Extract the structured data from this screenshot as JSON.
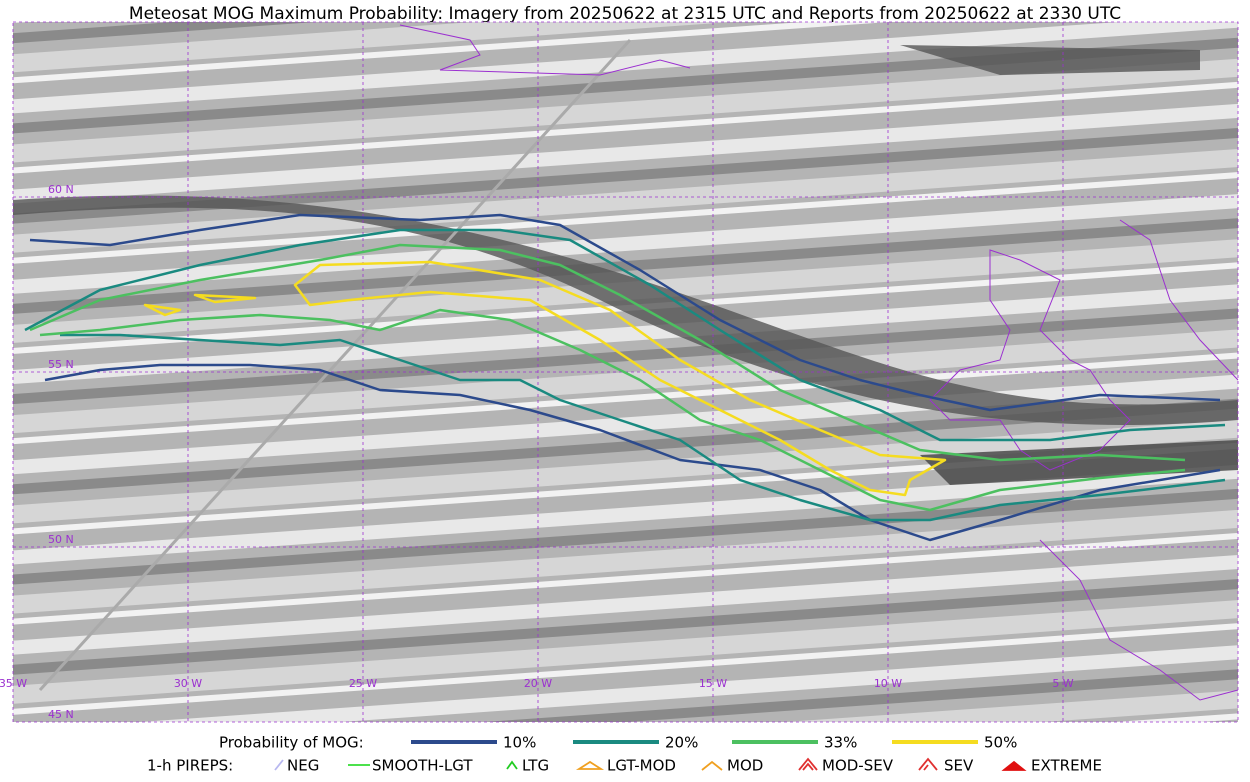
{
  "title": "Meteosat MOG Maximum Probability: Imagery from 20250622 at 2315 UTC and Reports from 20250622 at 2330 UTC",
  "map": {
    "lat_labels": [
      "60 N",
      "55 N",
      "50 N",
      "45 N"
    ],
    "lon_labels": [
      "35 W",
      "30 W",
      "25 W",
      "20 W",
      "15 W",
      "10 W",
      "5 W"
    ]
  },
  "legend": {
    "probability_label": "Probability of MOG:",
    "probability_items": [
      {
        "label": "10%",
        "color": "#2c4a8c"
      },
      {
        "label": "20%",
        "color": "#1a8a80"
      },
      {
        "label": "33%",
        "color": "#4cc060"
      },
      {
        "label": "50%",
        "color": "#f5dc20"
      }
    ],
    "pirep_label": "1-h PIREPS:",
    "pirep_items": [
      {
        "label": "NEG",
        "color": "#b8b8f0"
      },
      {
        "label": "SMOOTH-LGT",
        "color": "#33dd33"
      },
      {
        "label": "LTG",
        "color": "#22cc22"
      },
      {
        "label": "LGT-MOD",
        "color": "#f0a020"
      },
      {
        "label": "MOD",
        "color": "#f0a020"
      },
      {
        "label": "MOD-SEV",
        "color": "#e03030"
      },
      {
        "label": "SEV",
        "color": "#e03030"
      },
      {
        "label": "EXTREME",
        "color": "#e01010"
      }
    ]
  }
}
